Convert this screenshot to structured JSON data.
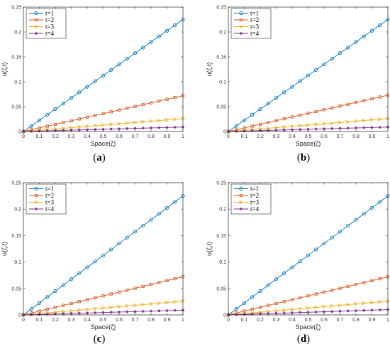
{
  "figure": {
    "captions": [
      "(a)",
      "(b)",
      "(c)",
      "(d)"
    ]
  },
  "chart_data": [
    {
      "type": "line",
      "panel": "(a)",
      "xlabel": "Space(ζ)",
      "ylabel": "u(ζ,t)",
      "xlim": [
        0,
        1
      ],
      "ylim": [
        0,
        0.25
      ],
      "xticks": [
        "0",
        "0.1",
        "0.2",
        "0.3",
        "0.4",
        "0.5",
        "0.6",
        "0.7",
        "0.8",
        "0.9",
        "1"
      ],
      "yticks": [
        "0",
        "0.05",
        "0.1",
        "0.15",
        "0.2",
        "0.25"
      ],
      "legend_position": "top-left",
      "grid": false,
      "x": [
        0,
        0.05,
        0.1,
        0.15,
        0.2,
        0.25,
        0.3,
        0.35,
        0.4,
        0.45,
        0.5,
        0.55,
        0.6,
        0.65,
        0.7,
        0.75,
        0.8,
        0.85,
        0.9,
        0.95,
        1.0
      ],
      "series": [
        {
          "name": "t=1",
          "color": "#0072BD",
          "marker": "circle",
          "slope": 0.225
        },
        {
          "name": "t=2",
          "color": "#D95319",
          "marker": "square",
          "slope": 0.072
        },
        {
          "name": "t=3",
          "color": "#EDB120",
          "marker": "triangle-right",
          "slope": 0.026
        },
        {
          "name": "t=4",
          "color": "#7E2F8E",
          "marker": "star",
          "slope": 0.009
        }
      ]
    },
    {
      "type": "line",
      "panel": "(b)",
      "xlabel": "Space(ζ)",
      "ylabel": "u(ζ,t)",
      "xlim": [
        0,
        1
      ],
      "ylim": [
        0,
        0.25
      ],
      "xticks": [
        "0",
        "0.1",
        "0.2",
        "0.3",
        "0.4",
        "0.5",
        "0.6",
        "0.7",
        "0.8",
        "0.9",
        "1"
      ],
      "yticks": [
        "0",
        "0.05",
        "0.1",
        "0.15",
        "0.2",
        "0.25"
      ],
      "legend_position": "top-left",
      "grid": false,
      "x": [
        0,
        0.05,
        0.1,
        0.15,
        0.2,
        0.25,
        0.3,
        0.35,
        0.4,
        0.45,
        0.5,
        0.55,
        0.6,
        0.65,
        0.7,
        0.75,
        0.8,
        0.85,
        0.9,
        0.95,
        1.0
      ],
      "series": [
        {
          "name": "t=1",
          "color": "#0072BD",
          "marker": "circle",
          "slope": 0.225
        },
        {
          "name": "t=2",
          "color": "#D95319",
          "marker": "square",
          "slope": 0.073
        },
        {
          "name": "t=3",
          "color": "#EDB120",
          "marker": "triangle-right",
          "slope": 0.026
        },
        {
          "name": "t=4",
          "color": "#7E2F8E",
          "marker": "star",
          "slope": 0.009
        }
      ]
    },
    {
      "type": "line",
      "panel": "(c)",
      "xlabel": "Space(ζ)",
      "ylabel": "u(ζ,t)",
      "xlim": [
        0,
        1
      ],
      "ylim": [
        0,
        0.25
      ],
      "xticks": [
        "0",
        "0.1",
        "0.2",
        "0.3",
        "0.4",
        "0.5",
        "0.6",
        "0.7",
        "0.8",
        "0.9",
        "1"
      ],
      "yticks": [
        "0",
        "0.05",
        "0.1",
        "0.15",
        "0.2",
        "0.25"
      ],
      "legend_position": "top-left",
      "grid": false,
      "x": [
        0,
        0.05,
        0.1,
        0.15,
        0.2,
        0.25,
        0.3,
        0.35,
        0.4,
        0.45,
        0.5,
        0.55,
        0.6,
        0.65,
        0.7,
        0.75,
        0.8,
        0.85,
        0.9,
        0.95,
        1.0
      ],
      "series": [
        {
          "name": "t=1",
          "color": "#0072BD",
          "marker": "circle",
          "slope": 0.225
        },
        {
          "name": "t=2",
          "color": "#D95319",
          "marker": "square",
          "slope": 0.072
        },
        {
          "name": "t=3",
          "color": "#EDB120",
          "marker": "triangle-right",
          "slope": 0.026
        },
        {
          "name": "t=4",
          "color": "#7E2F8E",
          "marker": "star",
          "slope": 0.009
        }
      ]
    },
    {
      "type": "line",
      "panel": "(d)",
      "xlabel": "Space(ζ)",
      "ylabel": "u(ζ,t)",
      "xlim": [
        0,
        1
      ],
      "ylim": [
        0,
        0.25
      ],
      "xticks": [
        "0",
        "0.1",
        "0.2",
        "0.3",
        "0.4",
        "0.5",
        "0.6",
        "0.7",
        "0.8",
        "0.9",
        "1"
      ],
      "yticks": [
        "0",
        "0.05",
        "0.1",
        "0.15",
        "0.2",
        "0.25"
      ],
      "legend_position": "top-left",
      "grid": false,
      "x": [
        0,
        0.05,
        0.1,
        0.15,
        0.2,
        0.25,
        0.3,
        0.35,
        0.4,
        0.45,
        0.5,
        0.55,
        0.6,
        0.65,
        0.7,
        0.75,
        0.8,
        0.85,
        0.9,
        0.95,
        1.0
      ],
      "series": [
        {
          "name": "t=1",
          "color": "#0072BD",
          "marker": "circle",
          "slope": 0.225
        },
        {
          "name": "t=2",
          "color": "#D95319",
          "marker": "square",
          "slope": 0.072
        },
        {
          "name": "t=3",
          "color": "#EDB120",
          "marker": "triangle-right",
          "slope": 0.026
        },
        {
          "name": "t=4",
          "color": "#7E2F8E",
          "marker": "star",
          "slope": 0.01
        }
      ]
    }
  ]
}
